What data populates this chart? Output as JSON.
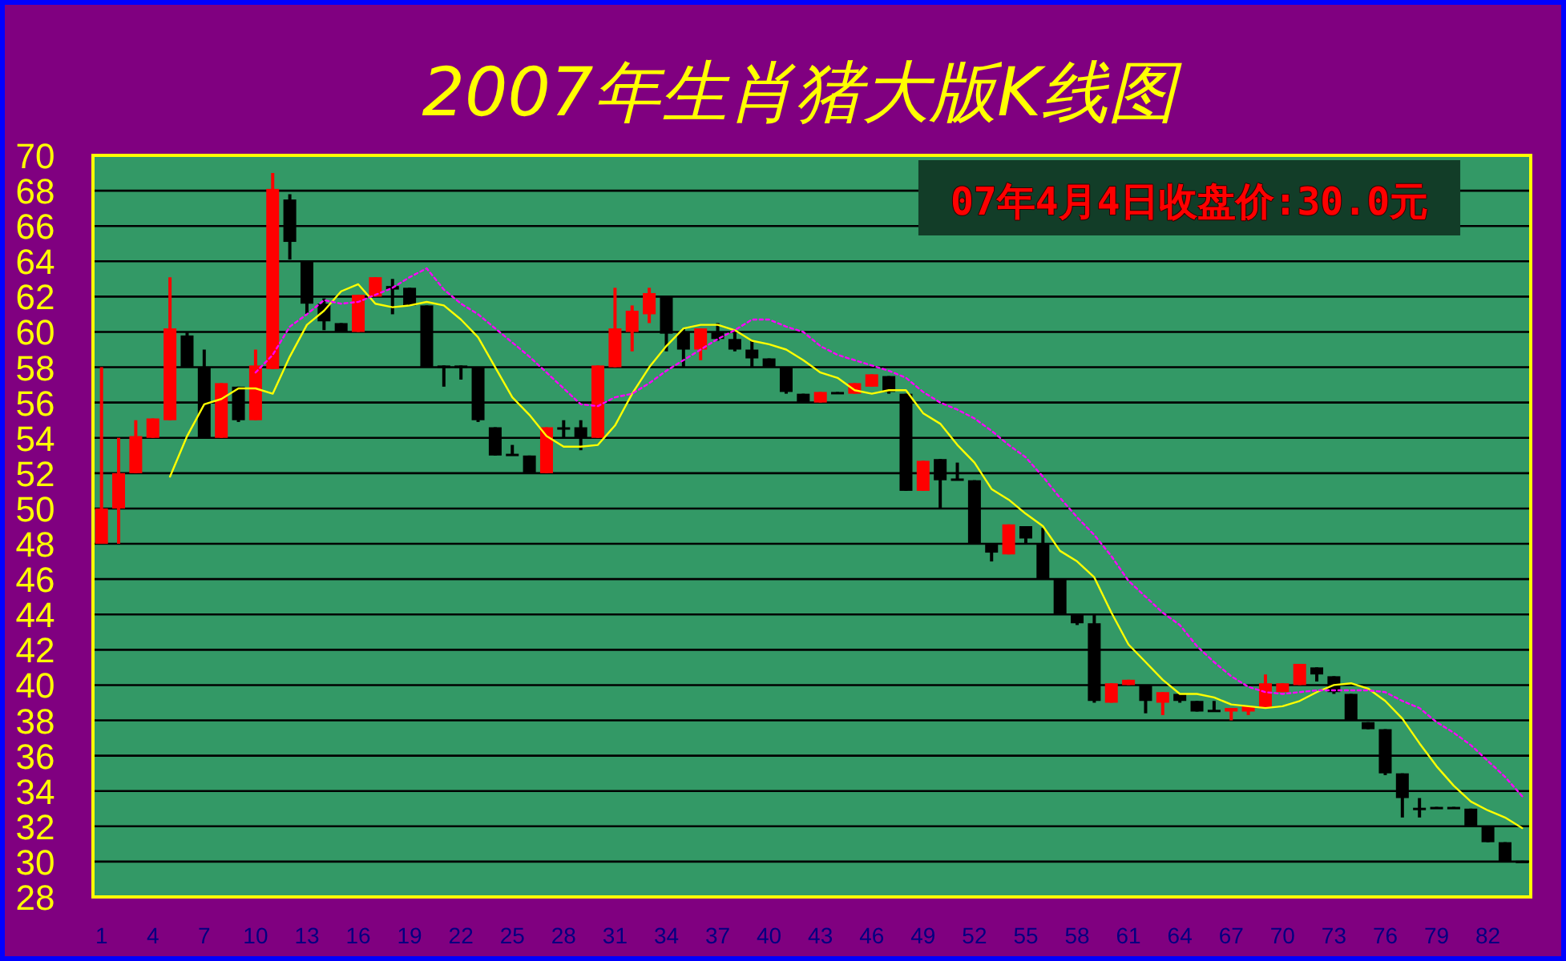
{
  "chart_data": {
    "type": "candlestick",
    "title": "2007年生肖猪大版K线图",
    "annotations": [
      "07年4月4日收盘价:30.0元"
    ],
    "x": [
      1,
      2,
      3,
      4,
      5,
      6,
      7,
      8,
      9,
      10,
      11,
      12,
      13,
      14,
      15,
      16,
      17,
      18,
      19,
      20,
      21,
      22,
      23,
      24,
      25,
      26,
      27,
      28,
      29,
      30,
      31,
      32,
      33,
      34,
      35,
      36,
      37,
      38,
      39,
      40,
      41,
      42,
      43,
      44,
      45,
      46,
      47,
      48,
      49,
      50,
      51,
      52,
      53,
      54,
      55,
      56,
      57,
      58,
      59,
      60,
      61,
      62,
      63,
      64,
      65,
      66,
      67,
      68,
      69,
      70,
      71,
      72,
      73,
      74,
      75,
      76,
      77,
      78,
      79,
      80,
      81,
      82,
      83,
      84
    ],
    "ohlc": [
      [
        48,
        58,
        48,
        50
      ],
      [
        50,
        54,
        48,
        52
      ],
      [
        52,
        55,
        52,
        54.1
      ],
      [
        54,
        55.1,
        54,
        55.1
      ],
      [
        55,
        63.1,
        55,
        60.2
      ],
      [
        59.8,
        60,
        58,
        58
      ],
      [
        58,
        59,
        54,
        54
      ],
      [
        54,
        57.1,
        54,
        57.1
      ],
      [
        56.9,
        56.9,
        54.9,
        55
      ],
      [
        55,
        59,
        55,
        58.1
      ],
      [
        57.9,
        69,
        57.9,
        68.1
      ],
      [
        67.5,
        67.8,
        64.1,
        65.1
      ],
      [
        64,
        64,
        61,
        61.6
      ],
      [
        61.6,
        61.9,
        60.1,
        60.6
      ],
      [
        60.5,
        60.5,
        60,
        60
      ],
      [
        60,
        62.1,
        60,
        62.1
      ],
      [
        62,
        63.1,
        62,
        63.1
      ],
      [
        62.6,
        63,
        61,
        62.4
      ],
      [
        62.5,
        62.5,
        61.5,
        61.5
      ],
      [
        61.5,
        61.5,
        58,
        58
      ],
      [
        58.1,
        58.1,
        56.9,
        58
      ],
      [
        58.1,
        58.1,
        57.3,
        58
      ],
      [
        58,
        58,
        54.9,
        55
      ],
      [
        54.6,
        54.6,
        53,
        53
      ],
      [
        53.1,
        53.6,
        53,
        53
      ],
      [
        53,
        53,
        52,
        52
      ],
      [
        52,
        54.6,
        52,
        54.6
      ],
      [
        54.6,
        55,
        54,
        54.5
      ],
      [
        54.6,
        55,
        53.3,
        54
      ],
      [
        54,
        58.1,
        54,
        58.1
      ],
      [
        58,
        62.5,
        58,
        60.2
      ],
      [
        60,
        61.5,
        58.9,
        61.2
      ],
      [
        61,
        62.5,
        60.5,
        62.2
      ],
      [
        62,
        62,
        58.9,
        59.9
      ],
      [
        60,
        60.2,
        58,
        59
      ],
      [
        59,
        60.2,
        58.4,
        60.2
      ],
      [
        60,
        60.5,
        59.5,
        59.6
      ],
      [
        59.6,
        60.1,
        58.9,
        59
      ],
      [
        59,
        59.5,
        58,
        58.5
      ],
      [
        58.5,
        58.5,
        58,
        58
      ],
      [
        58,
        58,
        56.5,
        56.6
      ],
      [
        56.5,
        56.5,
        56,
        56
      ],
      [
        56,
        56.6,
        56,
        56.6
      ],
      [
        56.6,
        56.6,
        56.5,
        56.5
      ],
      [
        56.5,
        57.1,
        56.5,
        57.1
      ],
      [
        56.9,
        57.6,
        56.9,
        57.6
      ],
      [
        57.5,
        57.5,
        56.5,
        56.6
      ],
      [
        56.5,
        56.5,
        51,
        51
      ],
      [
        51,
        52.7,
        51,
        52.7
      ],
      [
        52.8,
        52.8,
        50,
        51.6
      ],
      [
        51.7,
        52.6,
        51.6,
        51.6
      ],
      [
        51.6,
        51.6,
        48,
        48
      ],
      [
        48,
        48,
        47,
        47.5
      ],
      [
        47.4,
        49.1,
        47.4,
        49.1
      ],
      [
        49,
        49,
        48,
        48.3
      ],
      [
        48,
        48.9,
        46,
        46
      ],
      [
        46,
        46,
        44,
        44
      ],
      [
        44,
        44,
        43.4,
        43.5
      ],
      [
        43.5,
        44,
        39,
        39.1
      ],
      [
        39,
        40.1,
        39,
        40.1
      ],
      [
        40,
        40.3,
        40,
        40.3
      ],
      [
        40,
        40,
        38.4,
        39.1
      ],
      [
        39,
        39.6,
        38.3,
        39.6
      ],
      [
        39.5,
        39.5,
        39,
        39.1
      ],
      [
        39.1,
        39.1,
        38.5,
        38.5
      ],
      [
        38.6,
        39.1,
        38.5,
        38.5
      ],
      [
        38.5,
        38.7,
        38,
        38.7
      ],
      [
        38.5,
        38.8,
        38.3,
        38.8
      ],
      [
        38.7,
        40.6,
        38.7,
        40.1
      ],
      [
        39.6,
        40.1,
        39.6,
        40.1
      ],
      [
        40,
        41.2,
        40,
        41.2
      ],
      [
        41,
        41,
        40.2,
        40.6
      ],
      [
        40.5,
        40.5,
        39.5,
        39.6
      ],
      [
        39.5,
        39.5,
        38,
        38
      ],
      [
        37.9,
        37.9,
        37.5,
        37.5
      ],
      [
        37.5,
        37.5,
        34.9,
        35
      ],
      [
        35,
        35,
        32.5,
        33.6
      ],
      [
        33.05,
        33.6,
        32.5,
        33
      ],
      [
        33.1,
        33.1,
        33,
        33.05
      ],
      [
        33.1,
        33.1,
        33,
        33.05
      ],
      [
        33,
        33,
        32,
        32
      ],
      [
        32,
        32,
        31.1,
        31.1
      ],
      [
        31.1,
        31.1,
        30,
        30
      ],
      [
        30.05,
        30.05,
        30,
        30
      ]
    ],
    "series": [
      {
        "type": "line",
        "color": "#ffff00",
        "x": [
          5,
          6,
          7,
          8,
          9,
          10,
          11,
          12,
          13,
          14,
          15,
          16,
          17,
          18,
          19,
          20,
          21,
          22,
          23,
          24,
          25,
          26,
          27,
          28,
          29,
          30,
          31,
          32,
          33,
          34,
          35,
          36,
          37,
          38,
          39,
          40,
          41,
          42,
          43,
          44,
          45,
          46,
          47,
          48,
          49,
          50,
          51,
          52,
          53,
          54,
          55,
          56,
          57,
          58,
          59,
          60,
          61,
          62,
          63,
          64,
          65,
          66,
          67,
          68,
          69,
          70,
          71,
          72,
          73,
          74,
          75,
          76,
          77,
          78,
          79,
          80,
          81,
          82,
          83,
          84
        ],
        "values": [
          51.8,
          54.1,
          55.9,
          56.2,
          56.8,
          56.8,
          56.5,
          58.6,
          60.4,
          61.2,
          62.3,
          62.7,
          61.6,
          61.4,
          61.5,
          61.7,
          61.5,
          60.7,
          59.7,
          58,
          56.3,
          55.3,
          54.1,
          53.5,
          53.5,
          53.6,
          54.7,
          56.5,
          58,
          59.2,
          60.2,
          60.4,
          60.4,
          60.1,
          59.5,
          59.3,
          59,
          58.4,
          57.7,
          57.4,
          56.7,
          56.5,
          56.7,
          56.7,
          55.4,
          54.8,
          53.6,
          52.6,
          51.1,
          50.5,
          49.7,
          49,
          47.6,
          47,
          46.1,
          44.1,
          42.3,
          41.3,
          40.3,
          39.5,
          39.5,
          39.3,
          38.9,
          38.8,
          38.7,
          38.8,
          39.1,
          39.6,
          40,
          40.1,
          39.8,
          39.1,
          38.1,
          36.7,
          35.4,
          34.3,
          33.4,
          32.9,
          32.5,
          31.9
        ]
      },
      {
        "type": "line",
        "color": "#ff00ff",
        "line_style": "dotted",
        "x": [
          10,
          11,
          12,
          13,
          14,
          15,
          16,
          17,
          18,
          19,
          20,
          21,
          22,
          23,
          24,
          25,
          26,
          27,
          28,
          29,
          30,
          31,
          32,
          33,
          34,
          35,
          36,
          37,
          38,
          39,
          40,
          41,
          42,
          43,
          44,
          45,
          46,
          47,
          48,
          49,
          50,
          51,
          52,
          53,
          54,
          55,
          56,
          57,
          58,
          59,
          60,
          61,
          62,
          63,
          64,
          65,
          66,
          67,
          68,
          69,
          70,
          71,
          72,
          73,
          74,
          75,
          76,
          77,
          78,
          79,
          80,
          81,
          82,
          83,
          84
        ],
        "values": [
          57.7,
          58.7,
          60.3,
          61,
          61.8,
          61.6,
          61.7,
          62.1,
          62.5,
          63.1,
          63.6,
          62.4,
          61.6,
          61,
          60.2,
          59.4,
          58.6,
          57.7,
          56.8,
          55.9,
          55.8,
          56.3,
          56.5,
          57.1,
          57.8,
          58.4,
          59,
          59.6,
          60.1,
          60.7,
          60.7,
          60.3,
          60,
          59.2,
          58.7,
          58.4,
          58.1,
          57.8,
          57.4,
          56.6,
          56,
          55.6,
          55.1,
          54.4,
          53.6,
          52.9,
          51.8,
          50.6,
          49.5,
          48.5,
          47.3,
          45.9,
          45,
          44.1,
          43.4,
          42.2,
          41.3,
          40.5,
          39.9,
          39.6,
          39.5,
          39.6,
          39.7,
          39.7,
          39.7,
          39.7,
          39.6,
          39.1,
          38.7,
          37.9,
          37.3,
          36.6,
          35.7,
          34.8,
          33.7
        ]
      }
    ],
    "xlim": [
      0.5,
      84.5
    ],
    "xticks": [
      1,
      4,
      7,
      10,
      13,
      16,
      19,
      22,
      25,
      28,
      31,
      34,
      37,
      40,
      43,
      46,
      49,
      52,
      55,
      58,
      61,
      64,
      67,
      70,
      73,
      76,
      79,
      82
    ],
    "ylim": [
      28,
      70
    ],
    "yticks": [
      28,
      30,
      32,
      34,
      36,
      38,
      40,
      42,
      44,
      46,
      48,
      50,
      52,
      54,
      56,
      58,
      60,
      62,
      64,
      66,
      68,
      70
    ],
    "grid": "y"
  }
}
